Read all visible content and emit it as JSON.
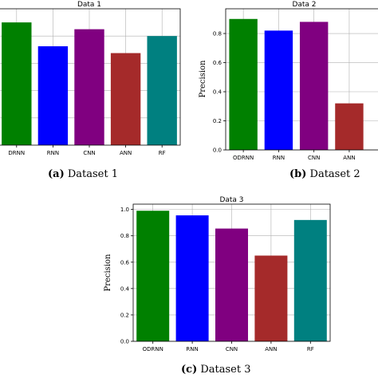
{
  "chart_data": [
    {
      "type": "bar",
      "title": "Data 1",
      "ylabel": "",
      "categories": [
        "ODRNN",
        "RNN",
        "CNN",
        "ANN",
        "RF"
      ],
      "category_labels": [
        "DRNN",
        "RNN",
        "CNN",
        "ANN",
        "RF"
      ],
      "values": [
        1.0,
        0.965,
        0.99,
        0.955,
        0.98
      ],
      "colors": [
        "#008000",
        "#0000ff",
        "#800080",
        "#a52a2a",
        "#008080"
      ],
      "yticks": [],
      "ylim": [
        0.82,
        1.02
      ],
      "grid": true,
      "caption_letter": "(a)",
      "caption_text": " Dataset 1"
    },
    {
      "type": "bar",
      "title": "Data 2",
      "ylabel": "Precision",
      "categories": [
        "ODRNN",
        "RNN",
        "CNN",
        "ANN"
      ],
      "category_labels": [
        "ODRNN",
        "RNN",
        "CNN",
        "ANN"
      ],
      "values": [
        0.9,
        0.82,
        0.88,
        0.32
      ],
      "colors": [
        "#008000",
        "#0000ff",
        "#800080",
        "#a52a2a"
      ],
      "yticks": [
        "0.0",
        "0.2",
        "0.4",
        "0.6",
        "0.8"
      ],
      "ylim": [
        0,
        0.97
      ],
      "grid": true,
      "caption_letter": "(b)",
      "caption_text": " Dataset 2"
    },
    {
      "type": "bar",
      "title": "Data 3",
      "ylabel": "Precision",
      "categories": [
        "ODRNN",
        "RNN",
        "CNN",
        "ANN",
        "RF"
      ],
      "category_labels": [
        "ODRNN",
        "RNN",
        "CNN",
        "ANN",
        "RF"
      ],
      "values": [
        0.99,
        0.955,
        0.855,
        0.65,
        0.92
      ],
      "colors": [
        "#008000",
        "#0000ff",
        "#800080",
        "#a52a2a",
        "#008080"
      ],
      "yticks": [
        "0.0",
        "0.2",
        "0.4",
        "0.6",
        "0.8",
        "1.0"
      ],
      "ylim": [
        0,
        1.04
      ],
      "grid": true,
      "caption_letter": "(c)",
      "caption_text": " Dataset 3"
    }
  ]
}
